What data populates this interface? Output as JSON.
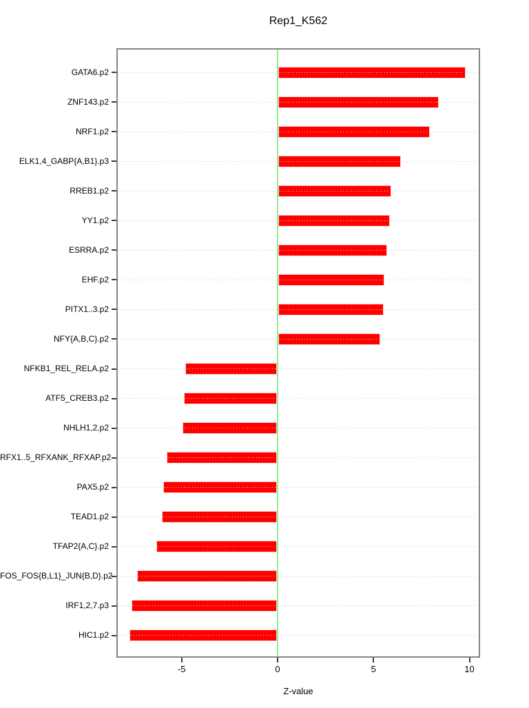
{
  "chart_data": {
    "type": "bar",
    "orientation": "horizontal",
    "title": "Rep1_K562",
    "xlabel": "Z-value",
    "ylabel": "",
    "categories": [
      "GATA6.p2",
      "ZNF143.p2",
      "NRF1.p2",
      "ELK1,4_GABP{A,B1}.p3",
      "RREB1.p2",
      "YY1.p2",
      "ESRRA.p2",
      "EHF.p2",
      "PITX1..3.p2",
      "NFY{A,B,C}.p2",
      "NFKB1_REL_RELA.p2",
      "ATF5_CREB3.p2",
      "NHLH1,2.p2",
      "RFX1..5_RFXANK_RFXAP.p2",
      "PAX5.p2",
      "TEAD1.p2",
      "TFAP2{A,C}.p2",
      "FOS_FOS{B,L1}_JUN{B,D}.p2",
      "IRF1,2,7.p3",
      "HIC1.p2"
    ],
    "values": [
      9.8,
      8.4,
      7.9,
      6.4,
      5.9,
      5.85,
      5.7,
      5.55,
      5.5,
      5.35,
      -4.8,
      -4.85,
      -4.95,
      -5.75,
      -5.95,
      -6.0,
      -6.3,
      -7.3,
      -7.6,
      -7.7
    ],
    "x_ticks": [
      -5,
      0,
      5,
      10
    ],
    "xlim": [
      -8.4,
      10.5
    ],
    "grid": "dotted-horizontal-per-category",
    "legend": "none",
    "zero_reference_line": 0,
    "colors": {
      "bar_fill": "#ff0000",
      "bar_border": "#ffd2d2",
      "zero_line": "#90ee90",
      "grid_dots": "#c6c6c6",
      "plot_border": "#848484",
      "text": "#000000",
      "background": "#ffffff"
    }
  }
}
